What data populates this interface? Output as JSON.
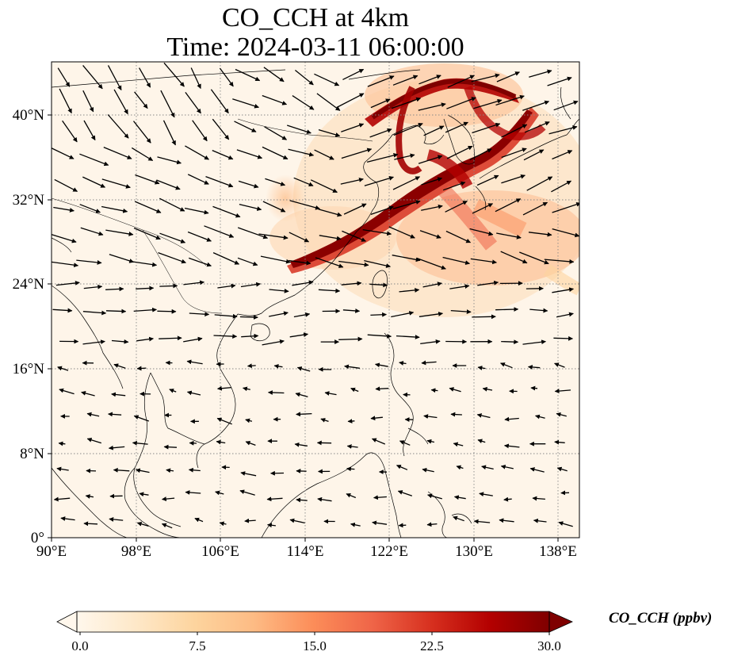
{
  "title": "CO_CCH at 4km",
  "subtitle": "Time: 2024-03-11 06:00:00",
  "map": {
    "extent": {
      "lon_min": 90,
      "lon_max": 140,
      "lat_min": 0,
      "lat_max": 45
    },
    "lon_ticks": [
      "90°E",
      "98°E",
      "106°E",
      "114°E",
      "122°E",
      "130°E",
      "138°E"
    ],
    "lat_ticks": [
      "0°",
      "8°N",
      "16°N",
      "24°N",
      "32°N",
      "40°N"
    ],
    "gridlines": "dotted",
    "overlay": "wind vectors"
  },
  "colorbar": {
    "label": "CO_CCH (ppbv)",
    "ticks": [
      "0.0",
      "7.5",
      "15.0",
      "22.5",
      "30.0"
    ],
    "min": 0,
    "max": 30,
    "colormap": [
      "#fff7ec",
      "#fee8c8",
      "#fdd49e",
      "#fdbb84",
      "#fc8d59",
      "#ef6548",
      "#d7301f",
      "#b30000",
      "#7f0000"
    ],
    "extend": "both"
  }
}
